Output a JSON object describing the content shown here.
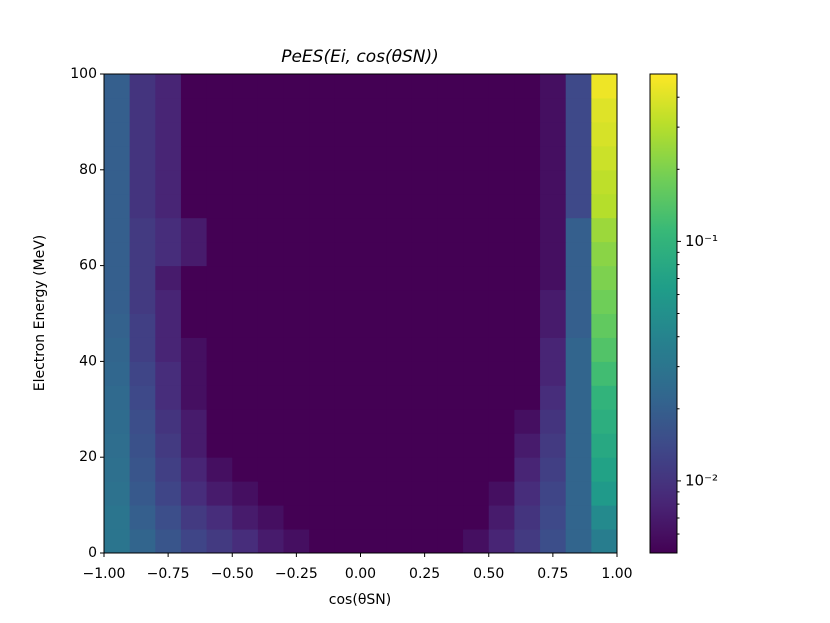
{
  "chart_data": {
    "type": "heatmap",
    "title": "PeES(Ei, cos(θSN))",
    "xlabel": "cos(θSN)",
    "ylabel": "Electron Energy (MeV)",
    "xlim": [
      -1,
      1
    ],
    "ylim": [
      0,
      100
    ],
    "xticks": [
      {
        "value": -1,
        "label": "−1.00"
      },
      {
        "value": -0.75,
        "label": "−0.75"
      },
      {
        "value": -0.5,
        "label": "−0.50"
      },
      {
        "value": -0.25,
        "label": "−0.25"
      },
      {
        "value": 0,
        "label": "0.00"
      },
      {
        "value": 0.25,
        "label": "0.25"
      },
      {
        "value": 0.5,
        "label": "0.50"
      },
      {
        "value": 0.75,
        "label": "0.75"
      },
      {
        "value": 1,
        "label": "1.00"
      }
    ],
    "yticks": [
      0,
      20,
      40,
      60,
      80,
      100
    ],
    "xbins": [
      -1,
      -0.9,
      -0.8,
      -0.7,
      -0.6,
      -0.5,
      -0.4,
      -0.3,
      -0.2,
      -0.1,
      0,
      0.1,
      0.2,
      0.3,
      0.4,
      0.5,
      0.6,
      0.7,
      0.8,
      0.9,
      1
    ],
    "ybins": [
      0,
      5,
      10,
      15,
      20,
      25,
      30,
      35,
      40,
      45,
      50,
      55,
      60,
      65,
      70,
      75,
      80,
      85,
      90,
      95,
      100
    ],
    "colormap": "viridis",
    "log_color": true,
    "clim": [
      0.005,
      0.5
    ],
    "cticks": [
      {
        "value": 0.01,
        "label": "10⁻²"
      },
      {
        "value": 0.1,
        "label": "10⁻¹"
      }
    ],
    "cminor_ticks": [
      0.006,
      0.007,
      0.008,
      0.009,
      0.02,
      0.03,
      0.04,
      0.05,
      0.06,
      0.07,
      0.08,
      0.09,
      0.2,
      0.3,
      0.4
    ],
    "z": [
      [
        0.03,
        0.022,
        0.017,
        0.013,
        0.011,
        0.009,
        0.007,
        0.006,
        0.005,
        0.005,
        0.005,
        0.005,
        0.005,
        0.005,
        0.006,
        0.008,
        0.011,
        0.015,
        0.022,
        0.035
      ],
      [
        0.03,
        0.02,
        0.015,
        0.011,
        0.009,
        0.007,
        0.006,
        0.005,
        0.005,
        0.005,
        0.005,
        0.005,
        0.005,
        0.005,
        0.005,
        0.007,
        0.01,
        0.014,
        0.022,
        0.045
      ],
      [
        0.028,
        0.018,
        0.013,
        0.009,
        0.007,
        0.006,
        0.005,
        0.005,
        0.005,
        0.005,
        0.005,
        0.005,
        0.005,
        0.005,
        0.005,
        0.006,
        0.009,
        0.013,
        0.022,
        0.06
      ],
      [
        0.027,
        0.017,
        0.012,
        0.008,
        0.006,
        0.005,
        0.005,
        0.005,
        0.005,
        0.005,
        0.005,
        0.005,
        0.005,
        0.005,
        0.005,
        0.005,
        0.008,
        0.012,
        0.022,
        0.07
      ],
      [
        0.026,
        0.016,
        0.011,
        0.007,
        0.005,
        0.005,
        0.005,
        0.005,
        0.005,
        0.005,
        0.005,
        0.005,
        0.005,
        0.005,
        0.005,
        0.005,
        0.007,
        0.011,
        0.022,
        0.08
      ],
      [
        0.025,
        0.015,
        0.01,
        0.007,
        0.005,
        0.005,
        0.005,
        0.005,
        0.005,
        0.005,
        0.005,
        0.005,
        0.005,
        0.005,
        0.005,
        0.005,
        0.006,
        0.01,
        0.022,
        0.09
      ],
      [
        0.024,
        0.014,
        0.009,
        0.006,
        0.005,
        0.005,
        0.005,
        0.005,
        0.005,
        0.005,
        0.005,
        0.005,
        0.005,
        0.005,
        0.005,
        0.005,
        0.005,
        0.009,
        0.022,
        0.1
      ],
      [
        0.023,
        0.013,
        0.009,
        0.006,
        0.005,
        0.005,
        0.005,
        0.005,
        0.005,
        0.005,
        0.005,
        0.005,
        0.005,
        0.005,
        0.005,
        0.005,
        0.005,
        0.008,
        0.022,
        0.12
      ],
      [
        0.022,
        0.012,
        0.008,
        0.006,
        0.005,
        0.005,
        0.005,
        0.005,
        0.005,
        0.005,
        0.005,
        0.005,
        0.005,
        0.005,
        0.005,
        0.005,
        0.005,
        0.008,
        0.022,
        0.14
      ],
      [
        0.021,
        0.012,
        0.008,
        0.005,
        0.005,
        0.005,
        0.005,
        0.005,
        0.005,
        0.005,
        0.005,
        0.005,
        0.005,
        0.005,
        0.005,
        0.005,
        0.005,
        0.007,
        0.02,
        0.16
      ],
      [
        0.02,
        0.011,
        0.008,
        0.005,
        0.005,
        0.005,
        0.005,
        0.005,
        0.005,
        0.005,
        0.005,
        0.005,
        0.005,
        0.005,
        0.005,
        0.005,
        0.005,
        0.007,
        0.02,
        0.18
      ],
      [
        0.02,
        0.011,
        0.007,
        0.005,
        0.005,
        0.005,
        0.005,
        0.005,
        0.005,
        0.005,
        0.005,
        0.005,
        0.005,
        0.005,
        0.005,
        0.005,
        0.005,
        0.006,
        0.02,
        0.2
      ],
      [
        0.02,
        0.011,
        0.009,
        0.007,
        0.005,
        0.005,
        0.005,
        0.005,
        0.005,
        0.005,
        0.005,
        0.005,
        0.005,
        0.005,
        0.005,
        0.005,
        0.005,
        0.006,
        0.02,
        0.22
      ],
      [
        0.02,
        0.011,
        0.009,
        0.007,
        0.005,
        0.005,
        0.005,
        0.005,
        0.005,
        0.005,
        0.005,
        0.005,
        0.005,
        0.005,
        0.005,
        0.005,
        0.005,
        0.006,
        0.02,
        0.25
      ],
      [
        0.02,
        0.01,
        0.008,
        0.005,
        0.005,
        0.005,
        0.005,
        0.005,
        0.005,
        0.005,
        0.005,
        0.005,
        0.005,
        0.005,
        0.005,
        0.005,
        0.005,
        0.006,
        0.014,
        0.3
      ],
      [
        0.02,
        0.01,
        0.008,
        0.005,
        0.005,
        0.005,
        0.005,
        0.005,
        0.005,
        0.005,
        0.005,
        0.005,
        0.005,
        0.005,
        0.005,
        0.005,
        0.005,
        0.006,
        0.014,
        0.32
      ],
      [
        0.02,
        0.01,
        0.008,
        0.005,
        0.005,
        0.005,
        0.005,
        0.005,
        0.005,
        0.005,
        0.005,
        0.005,
        0.005,
        0.005,
        0.005,
        0.005,
        0.005,
        0.006,
        0.014,
        0.35
      ],
      [
        0.02,
        0.01,
        0.008,
        0.005,
        0.005,
        0.005,
        0.005,
        0.005,
        0.005,
        0.005,
        0.005,
        0.005,
        0.005,
        0.005,
        0.005,
        0.005,
        0.005,
        0.006,
        0.014,
        0.38
      ],
      [
        0.02,
        0.01,
        0.008,
        0.005,
        0.005,
        0.005,
        0.005,
        0.005,
        0.005,
        0.005,
        0.005,
        0.005,
        0.005,
        0.005,
        0.005,
        0.005,
        0.005,
        0.006,
        0.014,
        0.4
      ],
      [
        0.02,
        0.01,
        0.008,
        0.005,
        0.005,
        0.005,
        0.005,
        0.005,
        0.005,
        0.005,
        0.005,
        0.005,
        0.005,
        0.005,
        0.005,
        0.005,
        0.005,
        0.006,
        0.014,
        0.45
      ]
    ]
  }
}
